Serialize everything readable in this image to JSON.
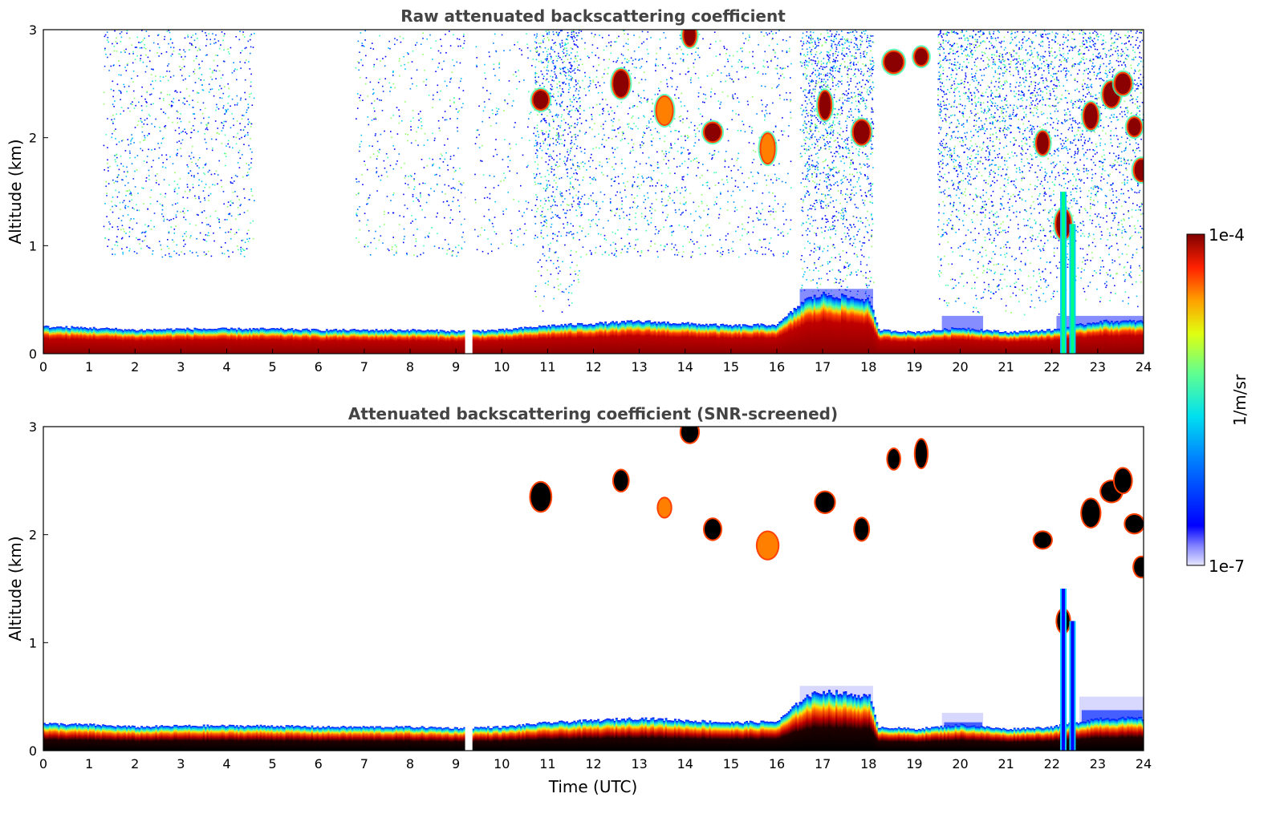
{
  "chart_data": [
    {
      "type": "heatmap",
      "title": "Raw attenuated backscattering coefficient",
      "xlabel": "",
      "ylabel": "Altitude (km)",
      "xlim": [
        0,
        24
      ],
      "ylim": [
        0,
        3
      ],
      "xticks": [
        "0",
        "1",
        "2",
        "3",
        "4",
        "5",
        "6",
        "7",
        "8",
        "9",
        "10",
        "11",
        "12",
        "13",
        "14",
        "15",
        "16",
        "17",
        "18",
        "19",
        "20",
        "21",
        "22",
        "23",
        "24"
      ],
      "yticks": [
        "0",
        "1",
        "2",
        "3"
      ],
      "data_gap": [
        9.2,
        9.35
      ],
      "boundary_layer_top_km": [
        [
          0,
          0.25
        ],
        [
          1,
          0.24
        ],
        [
          2,
          0.22
        ],
        [
          3,
          0.23
        ],
        [
          4,
          0.23
        ],
        [
          5,
          0.23
        ],
        [
          6,
          0.22
        ],
        [
          7,
          0.22
        ],
        [
          8,
          0.22
        ],
        [
          9,
          0.21
        ],
        [
          10,
          0.22
        ],
        [
          11,
          0.26
        ],
        [
          12,
          0.28
        ],
        [
          13,
          0.3
        ],
        [
          14,
          0.28
        ],
        [
          15,
          0.26
        ],
        [
          16,
          0.27
        ],
        [
          16.6,
          0.5
        ],
        [
          17,
          0.55
        ],
        [
          18,
          0.5
        ],
        [
          18.2,
          0.22
        ],
        [
          19,
          0.2
        ],
        [
          20,
          0.24
        ],
        [
          21,
          0.2
        ],
        [
          22,
          0.22
        ],
        [
          23,
          0.3
        ],
        [
          24,
          0.3
        ]
      ],
      "cloud_features": [
        {
          "t": 10.85,
          "alt": 2.35,
          "level": "high"
        },
        {
          "t": 12.6,
          "alt": 2.5,
          "level": "high"
        },
        {
          "t": 13.55,
          "alt": 2.25,
          "level": "mid"
        },
        {
          "t": 14.1,
          "alt": 2.95,
          "level": "high"
        },
        {
          "t": 14.6,
          "alt": 2.05,
          "level": "high"
        },
        {
          "t": 15.8,
          "alt": 1.9,
          "level": "mid"
        },
        {
          "t": 17.05,
          "alt": 2.3,
          "level": "high"
        },
        {
          "t": 17.85,
          "alt": 2.05,
          "level": "high"
        },
        {
          "t": 18.55,
          "alt": 2.7,
          "level": "high"
        },
        {
          "t": 19.15,
          "alt": 2.75,
          "level": "high"
        },
        {
          "t": 21.8,
          "alt": 1.95,
          "level": "high"
        },
        {
          "t": 22.25,
          "alt": 1.2,
          "level": "high"
        },
        {
          "t": 22.85,
          "alt": 2.2,
          "level": "high"
        },
        {
          "t": 23.3,
          "alt": 2.4,
          "level": "high"
        },
        {
          "t": 23.55,
          "alt": 2.5,
          "level": "high"
        },
        {
          "t": 23.8,
          "alt": 2.1,
          "level": "high"
        },
        {
          "t": 23.95,
          "alt": 1.7,
          "level": "high"
        }
      ]
    },
    {
      "type": "heatmap",
      "title": "Attenuated backscattering coefficient (SNR-screened)",
      "xlabel": "Time (UTC)",
      "ylabel": "Altitude (km)",
      "xlim": [
        0,
        24
      ],
      "ylim": [
        0,
        3
      ],
      "xticks": [
        "0",
        "1",
        "2",
        "3",
        "4",
        "5",
        "6",
        "7",
        "8",
        "9",
        "10",
        "11",
        "12",
        "13",
        "14",
        "15",
        "16",
        "17",
        "18",
        "19",
        "20",
        "21",
        "22",
        "23",
        "24"
      ],
      "yticks": [
        "0",
        "1",
        "2",
        "3"
      ],
      "data_gap": [
        9.2,
        9.35
      ]
    }
  ],
  "colorbar": {
    "label": "1/m/sr",
    "min_label": "1e-7",
    "max_label": "1e-4",
    "scale": "log",
    "colormap": "jet"
  }
}
